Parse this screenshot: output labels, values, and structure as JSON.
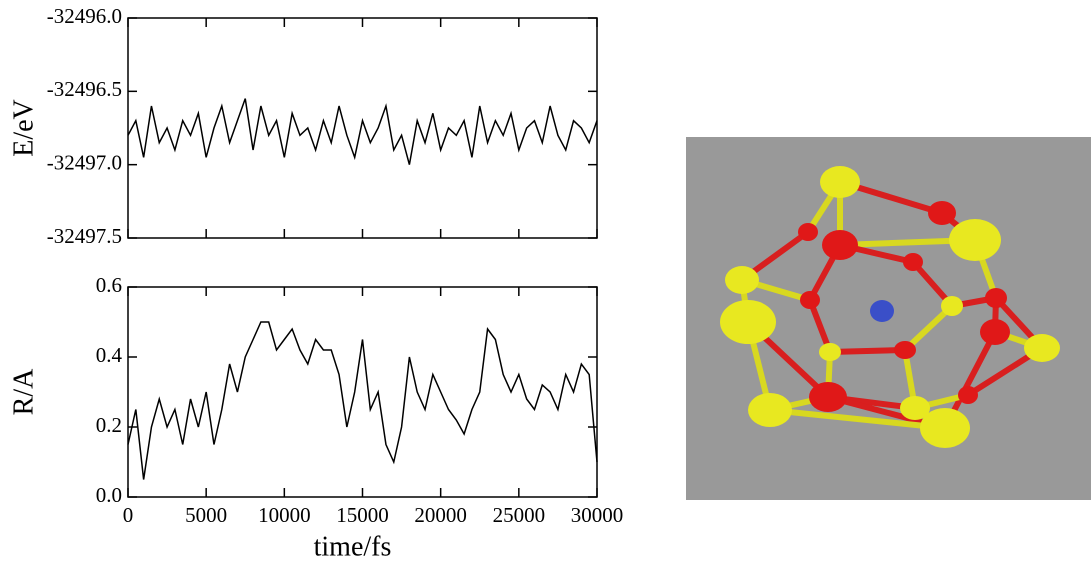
{
  "chart_data": [
    {
      "type": "line",
      "ylabel": "E/eV",
      "color": "#000000",
      "x": [
        0,
        500,
        1000,
        1500,
        2000,
        2500,
        3000,
        3500,
        4000,
        4500,
        5000,
        5500,
        6000,
        6500,
        7000,
        7500,
        8000,
        8500,
        9000,
        9500,
        10000,
        10500,
        11000,
        11500,
        12000,
        12500,
        13000,
        13500,
        14000,
        14500,
        15000,
        15500,
        16000,
        16500,
        17000,
        17500,
        18000,
        18500,
        19000,
        19500,
        20000,
        20500,
        21000,
        21500,
        22000,
        22500,
        23000,
        23500,
        24000,
        24500,
        25000,
        25500,
        26000,
        26500,
        27000,
        27500,
        28000,
        28500,
        29000,
        29500,
        30000
      ],
      "values": [
        -32496.8,
        -32496.7,
        -32496.95,
        -32496.6,
        -32496.85,
        -32496.75,
        -32496.9,
        -32496.7,
        -32496.8,
        -32496.65,
        -32496.95,
        -32496.75,
        -32496.6,
        -32496.85,
        -32496.7,
        -32496.55,
        -32496.9,
        -32496.6,
        -32496.8,
        -32496.7,
        -32496.95,
        -32496.65,
        -32496.8,
        -32496.75,
        -32496.9,
        -32496.7,
        -32496.85,
        -32496.6,
        -32496.8,
        -32496.95,
        -32496.7,
        -32496.85,
        -32496.75,
        -32496.6,
        -32496.9,
        -32496.8,
        -32497.0,
        -32496.7,
        -32496.85,
        -32496.65,
        -32496.9,
        -32496.75,
        -32496.8,
        -32496.7,
        -32496.95,
        -32496.6,
        -32496.85,
        -32496.7,
        -32496.8,
        -32496.65,
        -32496.9,
        -32496.75,
        -32496.7,
        -32496.85,
        -32496.6,
        -32496.8,
        -32496.9,
        -32496.7,
        -32496.75,
        -32496.85,
        -32496.7
      ],
      "xlim": [
        0,
        30000
      ],
      "xticks": [
        0,
        5000,
        10000,
        15000,
        20000,
        25000,
        30000
      ],
      "ylim": [
        -32497.5,
        -32496
      ],
      "yticks": [
        {
          "value": -32496,
          "label": "-32496.0"
        },
        -32496.5,
        {
          "value": -32497,
          "label": "-32497.0"
        },
        -32497.5
      ]
    },
    {
      "type": "line",
      "ylabel": "R/A",
      "xlabel": "time/fs",
      "color": "#000000",
      "x": [
        0,
        500,
        1000,
        1500,
        2000,
        2500,
        3000,
        3500,
        4000,
        4500,
        5000,
        5500,
        6000,
        6500,
        7000,
        7500,
        8000,
        8500,
        9000,
        9500,
        10000,
        10500,
        11000,
        11500,
        12000,
        12500,
        13000,
        13500,
        14000,
        14500,
        15000,
        15500,
        16000,
        16500,
        17000,
        17500,
        18000,
        18500,
        19000,
        19500,
        20000,
        20500,
        21000,
        21500,
        22000,
        22500,
        23000,
        23500,
        24000,
        24500,
        25000,
        25500,
        26000,
        26500,
        27000,
        27500,
        28000,
        28500,
        29000,
        29500,
        30000
      ],
      "values": [
        0.15,
        0.25,
        0.05,
        0.2,
        0.28,
        0.2,
        0.25,
        0.15,
        0.28,
        0.2,
        0.3,
        0.15,
        0.25,
        0.38,
        0.3,
        0.4,
        0.45,
        0.5,
        0.5,
        0.42,
        0.45,
        0.48,
        0.42,
        0.38,
        0.45,
        0.42,
        0.42,
        0.35,
        0.2,
        0.3,
        0.45,
        0.25,
        0.3,
        0.15,
        0.1,
        0.2,
        0.4,
        0.3,
        0.25,
        0.35,
        0.3,
        0.25,
        0.22,
        0.18,
        0.25,
        0.3,
        0.48,
        0.45,
        0.35,
        0.3,
        0.35,
        0.28,
        0.25,
        0.32,
        0.3,
        0.25,
        0.35,
        0.3,
        0.38,
        0.35,
        0.1
      ],
      "xlim": [
        0,
        30000
      ],
      "xticks": [
        0,
        5000,
        10000,
        15000,
        20000,
        25000,
        30000
      ],
      "ylim": [
        0,
        0.6
      ],
      "yticks": [
        {
          "value": 0,
          "label": "0.0"
        },
        0.2,
        0.4,
        0.6
      ]
    }
  ]
}
